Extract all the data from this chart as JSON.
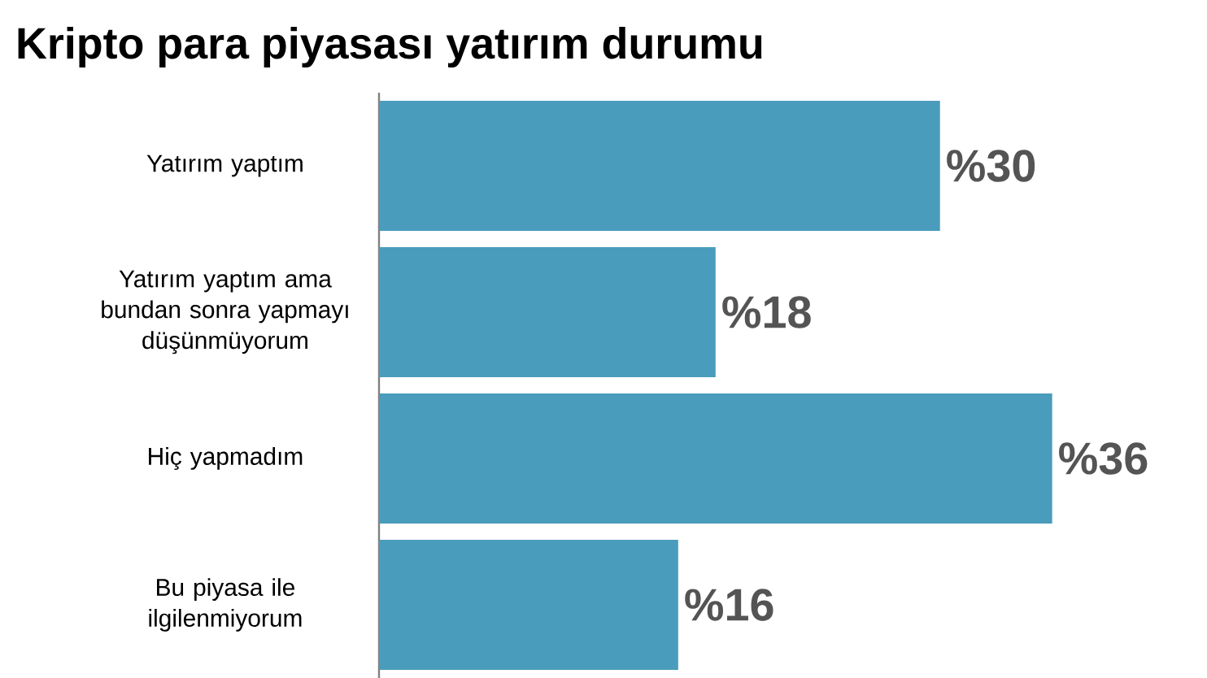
{
  "chart_data": {
    "type": "bar",
    "orientation": "horizontal",
    "title": "Kripto para piyasası yatırım durumu",
    "categories": [
      "Yatırım yaptım",
      "Yatırım yaptım ama bundan sonra yapmayı düşünmüyorum",
      "Hiç yapmadım",
      "Bu piyasa ile ilgilenmiyorum"
    ],
    "values": [
      30,
      18,
      36,
      16
    ],
    "value_labels": [
      "%30",
      "%18",
      "%36",
      "%16"
    ],
    "color": "#4a9cbc"
  }
}
